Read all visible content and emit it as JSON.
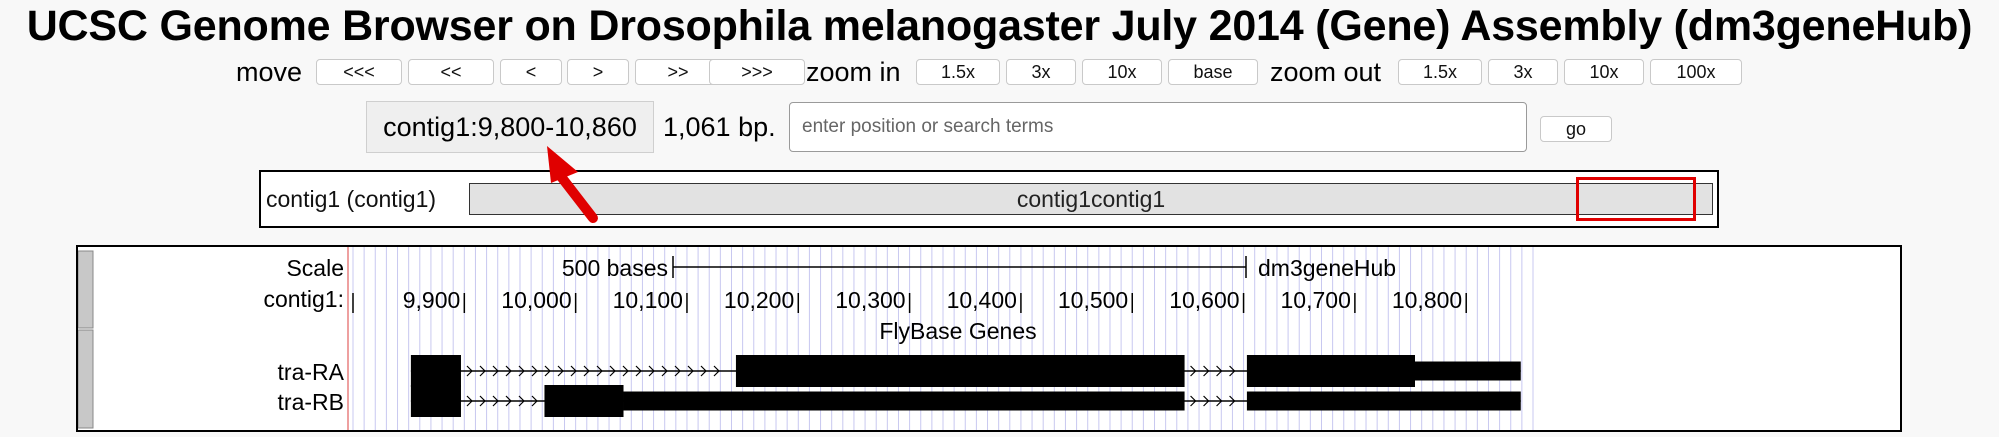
{
  "title": "UCSC Genome Browser on Drosophila melanogaster July 2014 (Gene) Assembly (dm3geneHub)",
  "nav": {
    "move_label": "move",
    "move_buttons": [
      "<<<",
      "<<",
      "<",
      ">",
      ">>",
      ">>>"
    ],
    "zoom_in_label": "zoom in",
    "zoom_in_buttons": [
      "1.5x",
      "3x",
      "10x",
      "base"
    ],
    "zoom_out_label": "zoom out",
    "zoom_out_buttons": [
      "1.5x",
      "3x",
      "10x",
      "100x"
    ]
  },
  "position": {
    "value": "contig1:9,800-10,860",
    "size_label": "1,061 bp.",
    "search_placeholder": "enter position or search terms",
    "go_label": "go"
  },
  "ideogram": {
    "label": "contig1 (contig1)",
    "bar_text": "contig1contig1"
  },
  "tracks": {
    "scale_label": "Scale",
    "chrom_label": "contig1:",
    "scale_bar_text": "500 bases",
    "hub_label": "dm3geneHub",
    "ticks": [
      9900,
      10000,
      10100,
      10200,
      10300,
      10400,
      10500,
      10600,
      10700,
      10800
    ],
    "tick_labels": [
      "9,900",
      "10,000",
      "10,100",
      "10,200",
      "10,300",
      "10,400",
      "10,500",
      "10,600",
      "10,700",
      "10,800"
    ],
    "track_title": "FlyBase Genes",
    "view_start": 9800,
    "view_end": 10860,
    "genes": [
      {
        "name": "tra-RA",
        "start": 9852,
        "end": 10849,
        "blocks": [
          [
            9852,
            9897,
            "cds"
          ],
          [
            10144,
            10547,
            "cds"
          ],
          [
            10603,
            10754,
            "cds"
          ],
          [
            10754,
            10849,
            "utr"
          ]
        ]
      },
      {
        "name": "tra-RB",
        "start": 9852,
        "end": 10849,
        "blocks": [
          [
            9852,
            9897,
            "cds"
          ],
          [
            9972,
            10043,
            "cds"
          ],
          [
            10043,
            10547,
            "utr"
          ],
          [
            10603,
            10849,
            "utr"
          ]
        ]
      }
    ]
  },
  "colors": {
    "highlight": "#e00000",
    "grid": "#c8c8f0",
    "left_guide": "#e88080",
    "gene": "#000000"
  }
}
